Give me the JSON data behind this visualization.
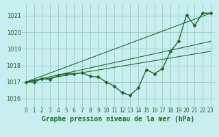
{
  "title": "Graphe pression niveau de la mer (hPa)",
  "background_color": "#c8eef0",
  "grid_color": "#99ccbb",
  "line_color": "#1a6b2a",
  "text_color": "#1a6b2a",
  "xlim": [
    -0.5,
    23.5
  ],
  "ylim": [
    1015.5,
    1021.7
  ],
  "yticks": [
    1016,
    1017,
    1018,
    1019,
    1020,
    1021
  ],
  "xticks": [
    0,
    1,
    2,
    3,
    4,
    5,
    6,
    7,
    8,
    9,
    10,
    11,
    12,
    13,
    14,
    15,
    16,
    17,
    18,
    19,
    20,
    21,
    22,
    23
  ],
  "main_series": {
    "x": [
      0,
      1,
      2,
      3,
      4,
      5,
      6,
      7,
      8,
      9,
      10,
      11,
      12,
      13,
      14,
      15,
      16,
      17,
      18,
      19,
      20,
      21,
      22,
      23
    ],
    "y": [
      1017.0,
      1017.0,
      1017.2,
      1017.15,
      1017.4,
      1017.5,
      1017.5,
      1017.55,
      1017.35,
      1017.3,
      1017.0,
      1016.75,
      1016.35,
      1016.2,
      1016.65,
      1017.75,
      1017.5,
      1017.8,
      1018.85,
      1019.45,
      1021.05,
      1020.4,
      1021.15,
      1021.15
    ]
  },
  "ref_lines": [
    {
      "x0": 0,
      "y0": 1017.0,
      "x1": 23,
      "y1": 1021.15
    },
    {
      "x0": 0,
      "y0": 1017.0,
      "x1": 23,
      "y1": 1019.45
    },
    {
      "x0": 0,
      "y0": 1017.0,
      "x1": 23,
      "y1": 1018.85
    }
  ],
  "marker": "D",
  "marker_size": 2.5,
  "line_linewidth": 1.0,
  "ref_linewidth": 0.8,
  "xlabel_fontsize": 7,
  "tick_fontsize": 5.5
}
